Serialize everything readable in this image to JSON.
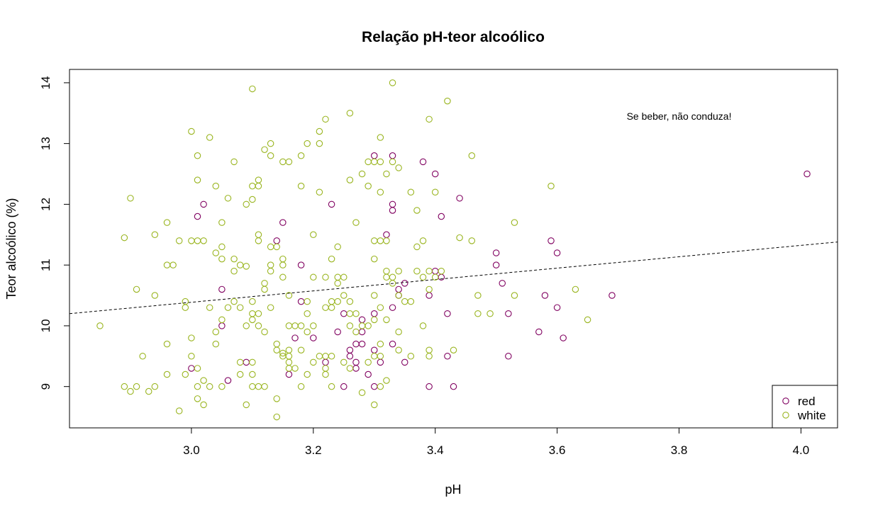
{
  "chart_data": {
    "type": "scatter",
    "title": "Relação pH-teor alcoólico",
    "xlabel": "pH",
    "ylabel": "Teor alcoólico (%)",
    "xlim": [
      2.8,
      4.06
    ],
    "ylim": [
      8.32,
      14.22
    ],
    "xticks": [
      "3.0",
      "3.2",
      "3.4",
      "3.6",
      "3.8",
      "4.0"
    ],
    "xtick_values": [
      3.0,
      3.2,
      3.4,
      3.6,
      3.8,
      4.0
    ],
    "yticks": [
      "9",
      "10",
      "11",
      "12",
      "13",
      "14"
    ],
    "ytick_values": [
      9,
      10,
      11,
      12,
      13,
      14
    ],
    "annotation": {
      "text": "Se beber, não conduza!",
      "x": 3.8,
      "y": 13.45
    },
    "trendline": {
      "style": "dashed",
      "color": "#000000",
      "x": [
        2.8,
        4.06
      ],
      "y": [
        10.2,
        11.38
      ]
    },
    "legend": {
      "position": "bottom-right"
    },
    "series": [
      {
        "name": "red",
        "color": "#800060",
        "points": [
          [
            3.01,
            11.8
          ],
          [
            3.02,
            12.0
          ],
          [
            3.0,
            9.3
          ],
          [
            3.05,
            10.6
          ],
          [
            3.05,
            10.0
          ],
          [
            3.06,
            9.1
          ],
          [
            3.09,
            9.4
          ],
          [
            3.14,
            11.4
          ],
          [
            3.15,
            11.7
          ],
          [
            3.16,
            9.2
          ],
          [
            3.17,
            9.8
          ],
          [
            3.18,
            10.4
          ],
          [
            3.18,
            11.0
          ],
          [
            3.2,
            9.8
          ],
          [
            3.22,
            9.4
          ],
          [
            3.23,
            12.0
          ],
          [
            3.24,
            9.9
          ],
          [
            3.25,
            10.2
          ],
          [
            3.25,
            9.0
          ],
          [
            3.26,
            9.5
          ],
          [
            3.26,
            9.6
          ],
          [
            3.27,
            9.7
          ],
          [
            3.27,
            9.4
          ],
          [
            3.27,
            9.3
          ],
          [
            3.28,
            10.1
          ],
          [
            3.28,
            9.9
          ],
          [
            3.28,
            9.7
          ],
          [
            3.29,
            9.2
          ],
          [
            3.3,
            12.8
          ],
          [
            3.3,
            10.2
          ],
          [
            3.3,
            9.0
          ],
          [
            3.3,
            9.6
          ],
          [
            3.31,
            9.4
          ],
          [
            3.32,
            11.5
          ],
          [
            3.33,
            12.8
          ],
          [
            3.33,
            12.0
          ],
          [
            3.33,
            11.9
          ],
          [
            3.33,
            10.3
          ],
          [
            3.33,
            9.7
          ],
          [
            3.34,
            10.6
          ],
          [
            3.34,
            10.5
          ],
          [
            3.35,
            10.7
          ],
          [
            3.35,
            9.4
          ],
          [
            3.38,
            12.7
          ],
          [
            3.39,
            10.5
          ],
          [
            3.39,
            9.0
          ],
          [
            3.4,
            12.5
          ],
          [
            3.4,
            10.9
          ],
          [
            3.41,
            11.8
          ],
          [
            3.41,
            10.8
          ],
          [
            3.42,
            10.2
          ],
          [
            3.42,
            9.5
          ],
          [
            3.43,
            9.0
          ],
          [
            3.44,
            12.1
          ],
          [
            3.5,
            11.2
          ],
          [
            3.5,
            11.0
          ],
          [
            3.51,
            10.7
          ],
          [
            3.52,
            10.2
          ],
          [
            3.52,
            9.5
          ],
          [
            3.57,
            9.9
          ],
          [
            3.58,
            10.5
          ],
          [
            3.59,
            11.4
          ],
          [
            3.6,
            11.2
          ],
          [
            3.6,
            10.3
          ],
          [
            3.61,
            9.8
          ],
          [
            3.69,
            10.5
          ],
          [
            4.01,
            12.5
          ]
        ]
      },
      {
        "name": "white",
        "color": "#9ab520",
        "points": [
          [
            2.85,
            10.0
          ],
          [
            2.89,
            11.45
          ],
          [
            2.89,
            9.0
          ],
          [
            2.9,
            12.1
          ],
          [
            2.9,
            8.92
          ],
          [
            2.91,
            10.6
          ],
          [
            2.91,
            9.0
          ],
          [
            2.92,
            9.5
          ],
          [
            2.93,
            8.92
          ],
          [
            2.94,
            11.5
          ],
          [
            2.94,
            10.5
          ],
          [
            2.94,
            9.0
          ],
          [
            2.96,
            11.7
          ],
          [
            2.96,
            11.0
          ],
          [
            2.96,
            9.7
          ],
          [
            2.96,
            9.2
          ],
          [
            2.97,
            11.0
          ],
          [
            2.98,
            11.4
          ],
          [
            2.98,
            8.6
          ],
          [
            2.99,
            10.4
          ],
          [
            2.99,
            10.3
          ],
          [
            2.99,
            9.2
          ],
          [
            3.0,
            13.2
          ],
          [
            3.0,
            11.4
          ],
          [
            3.0,
            9.8
          ],
          [
            3.0,
            9.5
          ],
          [
            3.01,
            12.8
          ],
          [
            3.01,
            12.4
          ],
          [
            3.01,
            11.4
          ],
          [
            3.01,
            9.3
          ],
          [
            3.01,
            9.0
          ],
          [
            3.01,
            8.8
          ],
          [
            3.02,
            11.4
          ],
          [
            3.02,
            9.1
          ],
          [
            3.02,
            8.7
          ],
          [
            3.03,
            13.1
          ],
          [
            3.03,
            10.3
          ],
          [
            3.03,
            9.0
          ],
          [
            3.04,
            12.3
          ],
          [
            3.04,
            11.2
          ],
          [
            3.04,
            9.9
          ],
          [
            3.04,
            9.7
          ],
          [
            3.05,
            11.7
          ],
          [
            3.05,
            11.3
          ],
          [
            3.05,
            11.1
          ],
          [
            3.05,
            10.1
          ],
          [
            3.05,
            9.0
          ],
          [
            3.06,
            12.1
          ],
          [
            3.06,
            10.3
          ],
          [
            3.07,
            12.7
          ],
          [
            3.07,
            11.1
          ],
          [
            3.07,
            10.9
          ],
          [
            3.07,
            10.4
          ],
          [
            3.08,
            11.0
          ],
          [
            3.08,
            10.3
          ],
          [
            3.08,
            9.4
          ],
          [
            3.08,
            9.2
          ],
          [
            3.09,
            12.0
          ],
          [
            3.09,
            10.98
          ],
          [
            3.09,
            10.0
          ],
          [
            3.09,
            8.7
          ],
          [
            3.1,
            13.9
          ],
          [
            3.1,
            12.3
          ],
          [
            3.1,
            12.08
          ],
          [
            3.1,
            10.4
          ],
          [
            3.1,
            10.2
          ],
          [
            3.1,
            10.1
          ],
          [
            3.1,
            9.4
          ],
          [
            3.1,
            9.2
          ],
          [
            3.1,
            9.0
          ],
          [
            3.11,
            12.4
          ],
          [
            3.11,
            12.3
          ],
          [
            3.11,
            11.5
          ],
          [
            3.11,
            11.4
          ],
          [
            3.11,
            10.2
          ],
          [
            3.11,
            10.0
          ],
          [
            3.11,
            9.0
          ],
          [
            3.12,
            12.9
          ],
          [
            3.12,
            10.7
          ],
          [
            3.12,
            10.6
          ],
          [
            3.12,
            9.9
          ],
          [
            3.12,
            9.0
          ],
          [
            3.13,
            13.0
          ],
          [
            3.13,
            12.8
          ],
          [
            3.13,
            11.3
          ],
          [
            3.13,
            11.0
          ],
          [
            3.13,
            10.9
          ],
          [
            3.13,
            10.3
          ],
          [
            3.14,
            11.3
          ],
          [
            3.14,
            9.7
          ],
          [
            3.14,
            9.6
          ],
          [
            3.14,
            8.8
          ],
          [
            3.14,
            8.5
          ],
          [
            3.15,
            12.7
          ],
          [
            3.15,
            11.1
          ],
          [
            3.15,
            11.0
          ],
          [
            3.15,
            10.8
          ],
          [
            3.15,
            9.5
          ],
          [
            3.15,
            9.55
          ],
          [
            3.16,
            12.7
          ],
          [
            3.16,
            10.5
          ],
          [
            3.16,
            10.0
          ],
          [
            3.16,
            9.6
          ],
          [
            3.16,
            9.5
          ],
          [
            3.16,
            9.4
          ],
          [
            3.16,
            9.3
          ],
          [
            3.17,
            10.0
          ],
          [
            3.17,
            9.3
          ],
          [
            3.18,
            12.8
          ],
          [
            3.18,
            12.3
          ],
          [
            3.18,
            10.0
          ],
          [
            3.18,
            9.6
          ],
          [
            3.18,
            9.0
          ],
          [
            3.19,
            13.0
          ],
          [
            3.19,
            10.4
          ],
          [
            3.19,
            10.2
          ],
          [
            3.19,
            9.9
          ],
          [
            3.19,
            9.2
          ],
          [
            3.2,
            11.5
          ],
          [
            3.2,
            10.8
          ],
          [
            3.2,
            10.0
          ],
          [
            3.2,
            9.4
          ],
          [
            3.21,
            13.2
          ],
          [
            3.21,
            13.0
          ],
          [
            3.21,
            12.2
          ],
          [
            3.21,
            9.5
          ],
          [
            3.22,
            13.4
          ],
          [
            3.22,
            10.8
          ],
          [
            3.22,
            10.3
          ],
          [
            3.22,
            9.5
          ],
          [
            3.22,
            9.3
          ],
          [
            3.22,
            9.2
          ],
          [
            3.23,
            11.1
          ],
          [
            3.23,
            10.4
          ],
          [
            3.23,
            10.3
          ],
          [
            3.23,
            9.5
          ],
          [
            3.23,
            9.0
          ],
          [
            3.24,
            11.3
          ],
          [
            3.24,
            10.8
          ],
          [
            3.24,
            10.7
          ],
          [
            3.24,
            10.4
          ],
          [
            3.25,
            10.8
          ],
          [
            3.25,
            10.5
          ],
          [
            3.25,
            9.4
          ],
          [
            3.26,
            13.5
          ],
          [
            3.26,
            12.4
          ],
          [
            3.26,
            10.4
          ],
          [
            3.26,
            10.2
          ],
          [
            3.26,
            10.0
          ],
          [
            3.26,
            9.3
          ],
          [
            3.27,
            11.7
          ],
          [
            3.27,
            10.2
          ],
          [
            3.27,
            9.9
          ],
          [
            3.28,
            12.5
          ],
          [
            3.28,
            10.0
          ],
          [
            3.28,
            8.9
          ],
          [
            3.29,
            12.7
          ],
          [
            3.29,
            12.3
          ],
          [
            3.29,
            10.0
          ],
          [
            3.29,
            9.4
          ],
          [
            3.3,
            12.7
          ],
          [
            3.3,
            11.4
          ],
          [
            3.3,
            11.1
          ],
          [
            3.3,
            10.5
          ],
          [
            3.3,
            10.1
          ],
          [
            3.3,
            9.5
          ],
          [
            3.3,
            8.7
          ],
          [
            3.31,
            13.1
          ],
          [
            3.31,
            12.7
          ],
          [
            3.31,
            12.2
          ],
          [
            3.31,
            11.4
          ],
          [
            3.31,
            10.3
          ],
          [
            3.31,
            9.7
          ],
          [
            3.31,
            9.5
          ],
          [
            3.31,
            9.0
          ],
          [
            3.32,
            12.5
          ],
          [
            3.32,
            11.4
          ],
          [
            3.32,
            10.9
          ],
          [
            3.32,
            10.8
          ],
          [
            3.32,
            10.1
          ],
          [
            3.32,
            9.1
          ],
          [
            3.33,
            14.0
          ],
          [
            3.33,
            12.7
          ],
          [
            3.33,
            10.8
          ],
          [
            3.33,
            10.7
          ],
          [
            3.34,
            12.6
          ],
          [
            3.34,
            10.9
          ],
          [
            3.34,
            10.5
          ],
          [
            3.34,
            9.9
          ],
          [
            3.34,
            9.6
          ],
          [
            3.35,
            10.4
          ],
          [
            3.36,
            12.2
          ],
          [
            3.36,
            10.4
          ],
          [
            3.36,
            9.5
          ],
          [
            3.37,
            11.9
          ],
          [
            3.37,
            11.3
          ],
          [
            3.37,
            10.9
          ],
          [
            3.38,
            11.4
          ],
          [
            3.38,
            10.0
          ],
          [
            3.38,
            10.8
          ],
          [
            3.39,
            13.4
          ],
          [
            3.39,
            10.9
          ],
          [
            3.39,
            10.6
          ],
          [
            3.39,
            9.6
          ],
          [
            3.39,
            9.5
          ],
          [
            3.4,
            12.2
          ],
          [
            3.4,
            10.8
          ],
          [
            3.41,
            10.9
          ],
          [
            3.42,
            13.7
          ],
          [
            3.43,
            9.6
          ],
          [
            3.44,
            11.45
          ],
          [
            3.46,
            12.8
          ],
          [
            3.46,
            11.4
          ],
          [
            3.47,
            10.5
          ],
          [
            3.47,
            10.2
          ],
          [
            3.49,
            10.2
          ],
          [
            3.53,
            11.7
          ],
          [
            3.53,
            10.5
          ],
          [
            3.59,
            12.3
          ],
          [
            3.63,
            10.6
          ],
          [
            3.65,
            10.1
          ]
        ]
      }
    ]
  }
}
